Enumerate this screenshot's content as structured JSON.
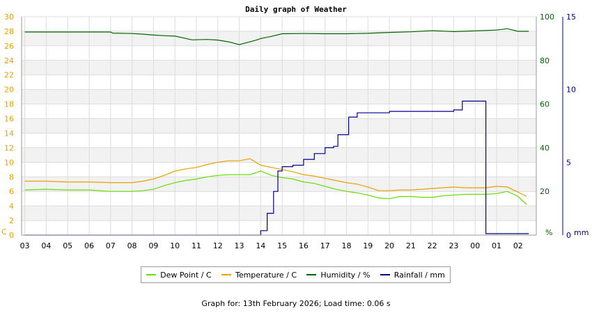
{
  "chart_data": {
    "type": "line",
    "title": "Daily graph of Weather",
    "x_ticks": [
      "03",
      "04",
      "05",
      "06",
      "07",
      "08",
      "09",
      "10",
      "11",
      "12",
      "13",
      "14",
      "15",
      "16",
      "17",
      "18",
      "19",
      "20",
      "21",
      "22",
      "23",
      "00",
      "01",
      "02"
    ],
    "left_axis": {
      "label": "C",
      "ticks": [
        0,
        2,
        4,
        6,
        8,
        10,
        12,
        14,
        16,
        18,
        20,
        22,
        24,
        26,
        28,
        30
      ],
      "ylim": [
        0,
        30
      ],
      "color": "#e8a000"
    },
    "right_axis_humidity": {
      "label": "%",
      "ticks": [
        0,
        20,
        40,
        60,
        80,
        100
      ],
      "ylim": [
        0,
        100
      ],
      "color": "#006400"
    },
    "right_axis_rainfall": {
      "label": "mm",
      "ticks": [
        0,
        5,
        10,
        15
      ],
      "ylim": [
        0,
        15
      ],
      "color": "#00008b"
    },
    "grid": true,
    "legend_position": "bottom",
    "series": [
      {
        "name": "Dew Point / C",
        "axis": "left",
        "color": "#66dd00",
        "points": [
          [
            0,
            6.2
          ],
          [
            1,
            6.3
          ],
          [
            2,
            6.2
          ],
          [
            3,
            6.2
          ],
          [
            4,
            6.0
          ],
          [
            5,
            6.0
          ],
          [
            5.5,
            6.1
          ],
          [
            6,
            6.3
          ],
          [
            6.5,
            6.8
          ],
          [
            7,
            7.2
          ],
          [
            7.5,
            7.5
          ],
          [
            8,
            7.7
          ],
          [
            8.5,
            8.0
          ],
          [
            9,
            8.2
          ],
          [
            9.5,
            8.3
          ],
          [
            10,
            8.3
          ],
          [
            10.5,
            8.3
          ],
          [
            11,
            8.8
          ],
          [
            11.5,
            8.2
          ],
          [
            12,
            7.9
          ],
          [
            12.5,
            7.7
          ],
          [
            13,
            7.3
          ],
          [
            13.5,
            7.1
          ],
          [
            14,
            6.7
          ],
          [
            14.5,
            6.3
          ],
          [
            15,
            6.0
          ],
          [
            15.5,
            5.8
          ],
          [
            16,
            5.5
          ],
          [
            16.5,
            5.1
          ],
          [
            17,
            5.0
          ],
          [
            17.5,
            5.3
          ],
          [
            18,
            5.3
          ],
          [
            18.5,
            5.2
          ],
          [
            19,
            5.2
          ],
          [
            19.5,
            5.4
          ],
          [
            20,
            5.5
          ],
          [
            20.5,
            5.6
          ],
          [
            21,
            5.6
          ],
          [
            21.5,
            5.6
          ],
          [
            22,
            5.7
          ],
          [
            22.5,
            6.0
          ],
          [
            23,
            5.3
          ],
          [
            23.4,
            4.2
          ]
        ]
      },
      {
        "name": "Temperature / C",
        "axis": "left",
        "color": "#e8a000",
        "points": [
          [
            0,
            7.4
          ],
          [
            1,
            7.4
          ],
          [
            2,
            7.3
          ],
          [
            3,
            7.3
          ],
          [
            4,
            7.2
          ],
          [
            5,
            7.2
          ],
          [
            5.5,
            7.4
          ],
          [
            6,
            7.7
          ],
          [
            6.5,
            8.2
          ],
          [
            7,
            8.8
          ],
          [
            7.5,
            9.1
          ],
          [
            8,
            9.3
          ],
          [
            8.5,
            9.7
          ],
          [
            9,
            10.0
          ],
          [
            9.5,
            10.2
          ],
          [
            10,
            10.2
          ],
          [
            10.5,
            10.5
          ],
          [
            11,
            9.6
          ],
          [
            11.5,
            9.3
          ],
          [
            12,
            9.0
          ],
          [
            12.5,
            8.7
          ],
          [
            13,
            8.3
          ],
          [
            13.5,
            8.1
          ],
          [
            14,
            7.8
          ],
          [
            14.5,
            7.5
          ],
          [
            15,
            7.2
          ],
          [
            15.5,
            7.0
          ],
          [
            16,
            6.6
          ],
          [
            16.5,
            6.1
          ],
          [
            17,
            6.1
          ],
          [
            17.5,
            6.2
          ],
          [
            18,
            6.2
          ],
          [
            18.5,
            6.3
          ],
          [
            19,
            6.4
          ],
          [
            19.5,
            6.5
          ],
          [
            20,
            6.6
          ],
          [
            20.5,
            6.5
          ],
          [
            21,
            6.5
          ],
          [
            21.5,
            6.5
          ],
          [
            22,
            6.7
          ],
          [
            22.5,
            6.6
          ],
          [
            23,
            5.9
          ],
          [
            23.4,
            5.3
          ]
        ]
      },
      {
        "name": "Humidity / %",
        "axis": "right_humidity",
        "color": "#006400",
        "points": [
          [
            0,
            93
          ],
          [
            1,
            93
          ],
          [
            2,
            93
          ],
          [
            3,
            93
          ],
          [
            4,
            93
          ],
          [
            4.1,
            92.5
          ],
          [
            5,
            92.3
          ],
          [
            5.5,
            92
          ],
          [
            6,
            91.6
          ],
          [
            6.5,
            91.3
          ],
          [
            7,
            91.1
          ],
          [
            7.8,
            89.4
          ],
          [
            8.5,
            89.6
          ],
          [
            9,
            89.3
          ],
          [
            9.5,
            88.5
          ],
          [
            10,
            87.2
          ],
          [
            10.5,
            88.5
          ],
          [
            10.8,
            89.3
          ],
          [
            11,
            90
          ],
          [
            11.5,
            91
          ],
          [
            12,
            92.2
          ],
          [
            13,
            92.3
          ],
          [
            14,
            92.2
          ],
          [
            15,
            92.2
          ],
          [
            16,
            92.4
          ],
          [
            17,
            92.8
          ],
          [
            18,
            93.1
          ],
          [
            19,
            93.6
          ],
          [
            20,
            93.2
          ],
          [
            21,
            93.5
          ],
          [
            22,
            93.9
          ],
          [
            22.5,
            94.5
          ],
          [
            23,
            93.3
          ],
          [
            23.5,
            93.3
          ]
        ]
      },
      {
        "name": "Rainfall / mm",
        "axis": "right_rainfall",
        "color": "#00008b",
        "points": [
          [
            0,
            0
          ],
          [
            10.5,
            0
          ],
          [
            11.0,
            0.3
          ],
          [
            11.3,
            1.5
          ],
          [
            11.6,
            3.0
          ],
          [
            11.8,
            4.4
          ],
          [
            12,
            4.7
          ],
          [
            12.5,
            4.8
          ],
          [
            13,
            5.2
          ],
          [
            13.5,
            5.6
          ],
          [
            14,
            6.0
          ],
          [
            14.4,
            6.1
          ],
          [
            14.6,
            6.9
          ],
          [
            15.1,
            8.1
          ],
          [
            15.5,
            8.4
          ],
          [
            16,
            8.4
          ],
          [
            17,
            8.5
          ],
          [
            18,
            8.5
          ],
          [
            19,
            8.5
          ],
          [
            19.5,
            8.5
          ],
          [
            20,
            8.6
          ],
          [
            20.4,
            9.2
          ],
          [
            21,
            9.2
          ],
          [
            21.45,
            9.2
          ],
          [
            21.5,
            0.1
          ],
          [
            23.5,
            0.1
          ]
        ]
      }
    ]
  },
  "legend": {
    "items": [
      {
        "label": "Dew Point / C",
        "color": "#66dd00"
      },
      {
        "label": "Temperature / C",
        "color": "#e8a000"
      },
      {
        "label": "Humidity / %",
        "color": "#006400"
      },
      {
        "label": "Rainfall / mm",
        "color": "#00008b"
      }
    ]
  },
  "footer": {
    "text": "Graph for: 13th February 2026; Load time: 0.06 s"
  }
}
